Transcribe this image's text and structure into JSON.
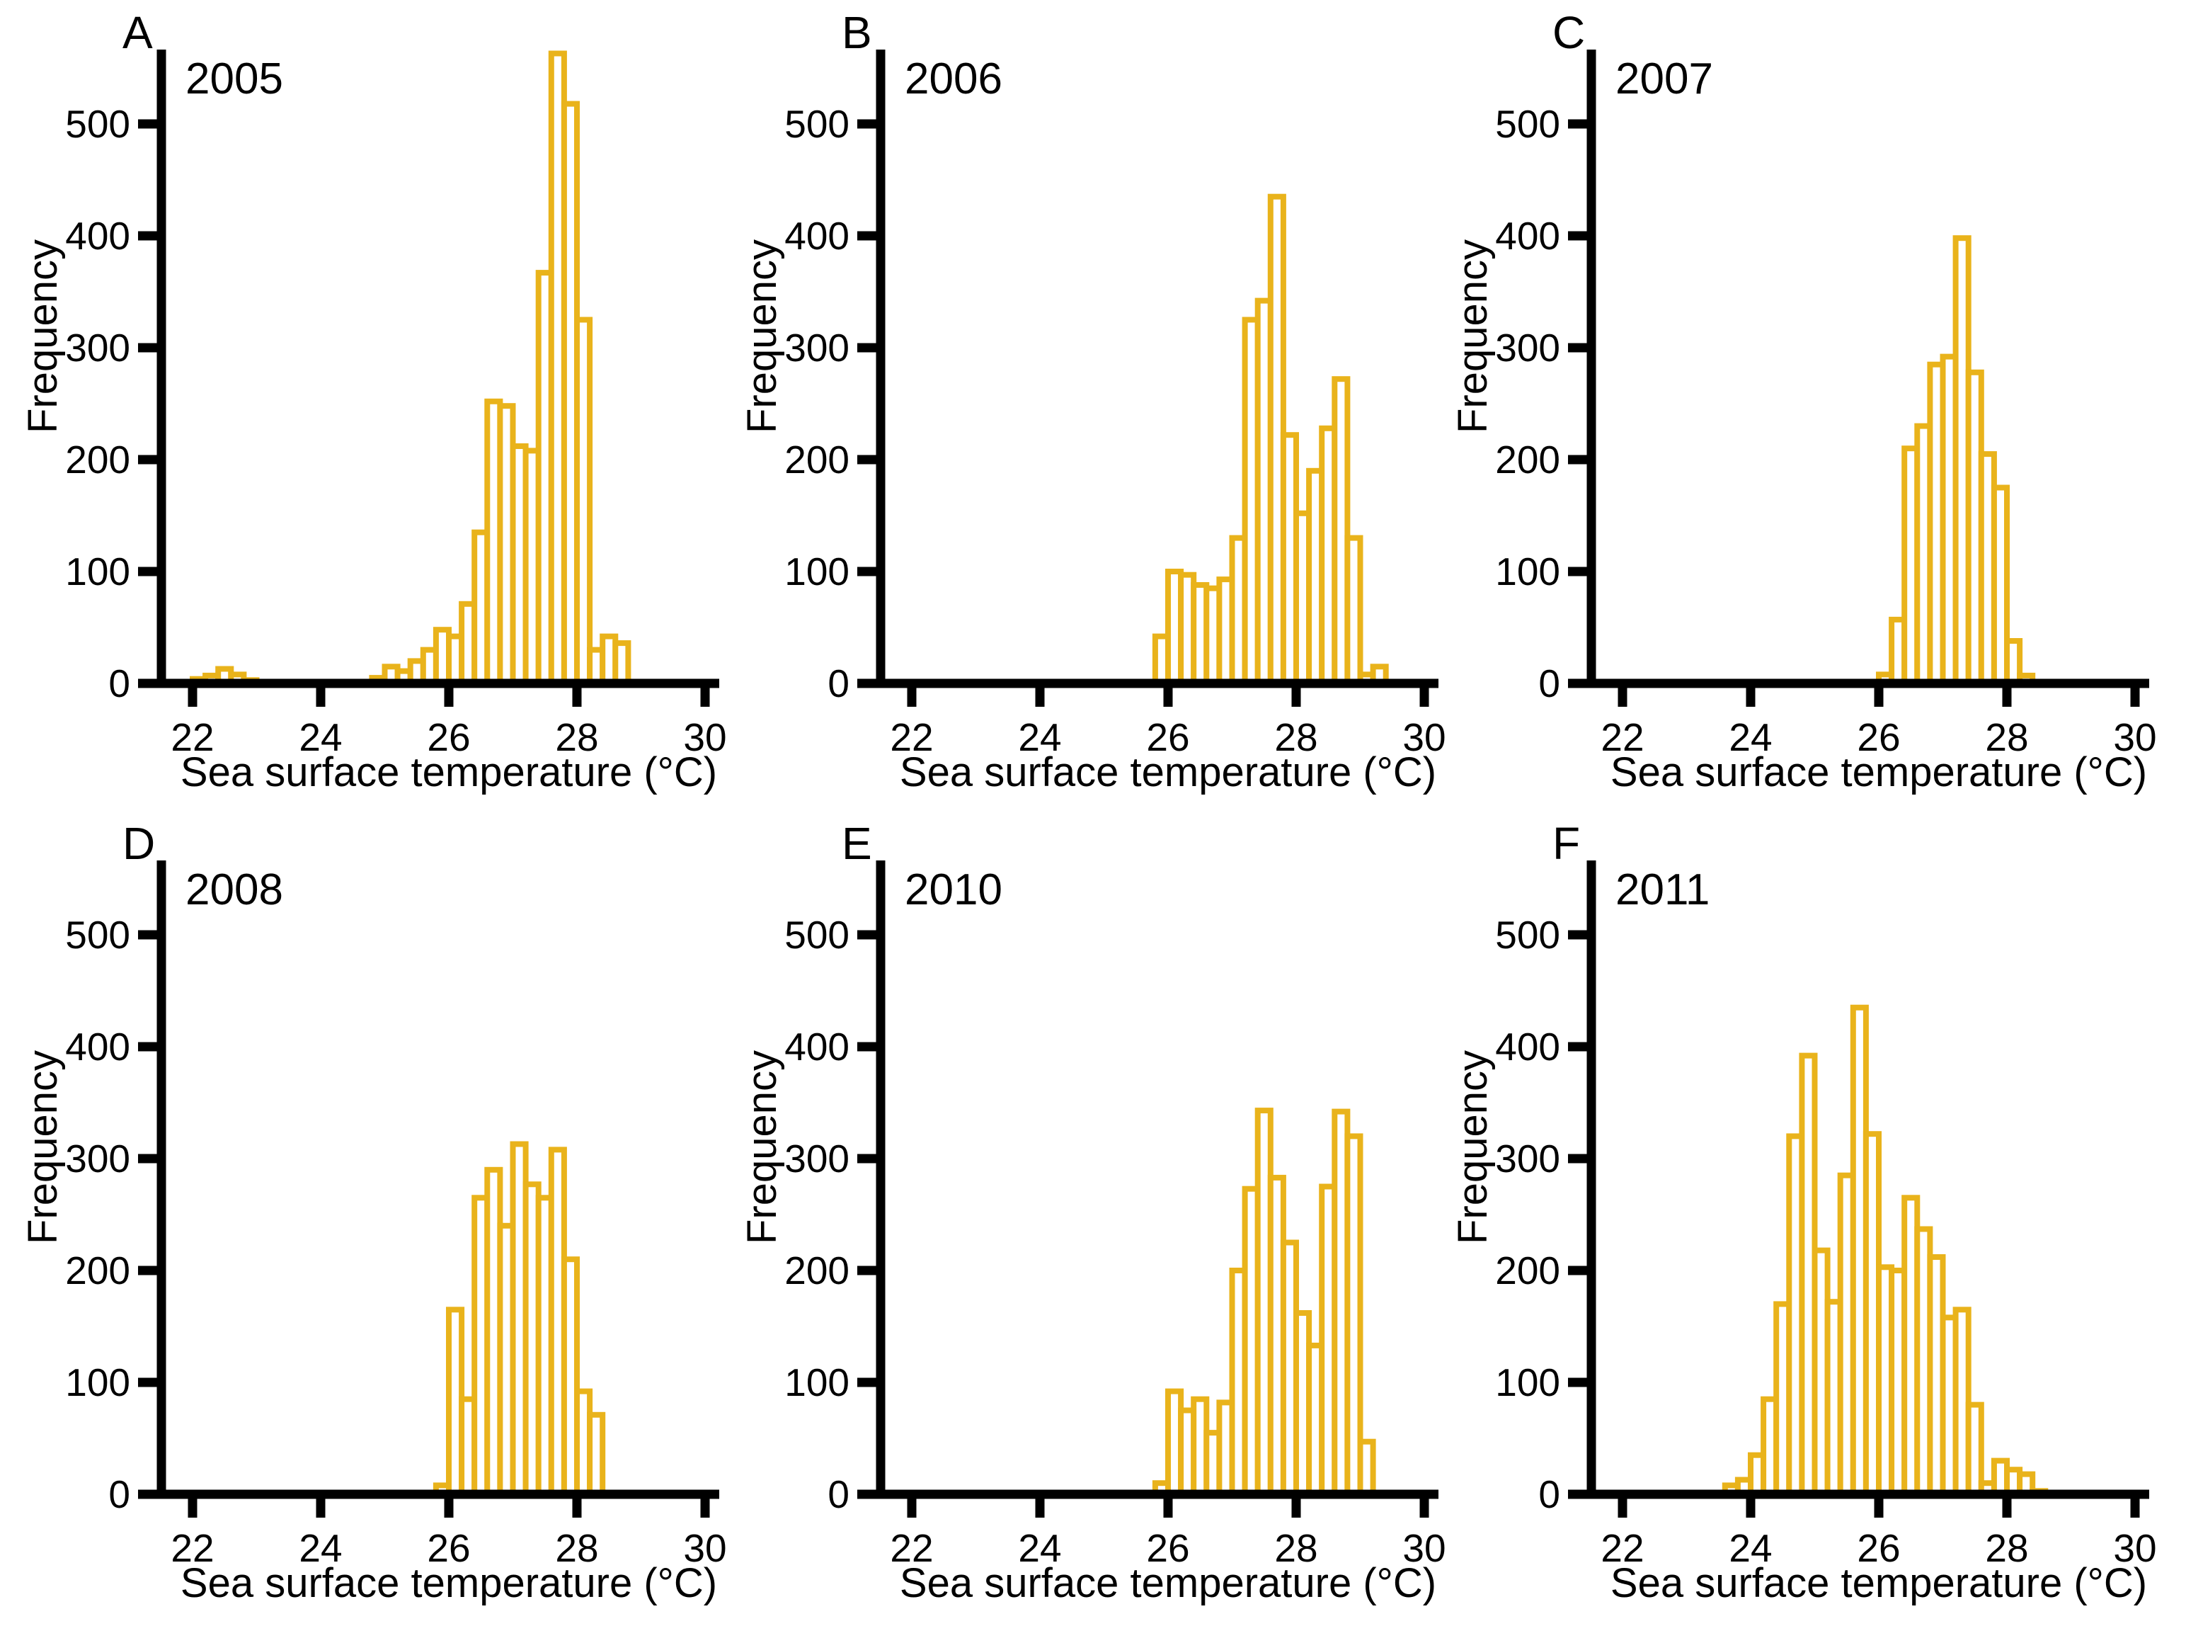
{
  "figure": {
    "ylabel": "Frequency",
    "xlabel": "Sea surface temperature (°C)",
    "x_tick_labels": [
      "22",
      "24",
      "26",
      "28",
      "30"
    ],
    "y_tick_labels": [
      "0",
      "100",
      "200",
      "300",
      "400",
      "500"
    ],
    "colors": {
      "bar_edge": "#E9B31B",
      "bar_face": "#FFFFFF",
      "axis": "#000000",
      "background": "#FFFFFF",
      "text": "#000000"
    }
  },
  "chart_data": [
    {
      "type": "bar",
      "panel_letter": "A",
      "year_label": "2005",
      "xlabel": "Sea surface temperature (°C)",
      "ylabel": "Frequency",
      "bin_start": 22.0,
      "bin_width": 0.2,
      "frequencies": [
        4,
        7,
        13,
        8,
        3,
        0,
        0,
        0,
        0,
        0,
        0,
        0,
        0,
        0,
        5,
        15,
        11,
        20,
        30,
        48,
        42,
        71,
        135,
        252,
        248,
        212,
        208,
        367,
        563,
        518,
        325,
        30,
        42,
        36
      ],
      "xticks": [
        22,
        24,
        26,
        28,
        30
      ],
      "yticks": [
        0,
        100,
        200,
        300,
        400,
        500
      ],
      "xlim": [
        21.5,
        30.6
      ],
      "ylim": [
        0,
        566
      ],
      "grid": false,
      "legend": "none"
    },
    {
      "type": "bar",
      "panel_letter": "B",
      "year_label": "2006",
      "xlabel": "Sea surface temperature (°C)",
      "ylabel": "Frequency",
      "bin_start": 25.8,
      "bin_width": 0.2,
      "frequencies": [
        42,
        100,
        97,
        88,
        85,
        93,
        130,
        325,
        342,
        435,
        222,
        152,
        190,
        228,
        272,
        130,
        8,
        15
      ],
      "xticks": [
        22,
        24,
        26,
        28,
        30
      ],
      "yticks": [
        0,
        100,
        200,
        300,
        400,
        500
      ],
      "xlim": [
        21.5,
        30.6
      ],
      "ylim": [
        0,
        566
      ],
      "grid": false,
      "legend": "none"
    },
    {
      "type": "bar",
      "panel_letter": "C",
      "year_label": "2007",
      "xlabel": "Sea surface temperature (°C)",
      "ylabel": "Frequency",
      "bin_start": 26.0,
      "bin_width": 0.2,
      "frequencies": [
        8,
        57,
        210,
        230,
        285,
        292,
        398,
        278,
        205,
        175,
        38,
        7
      ],
      "xticks": [
        22,
        24,
        26,
        28,
        30
      ],
      "yticks": [
        0,
        100,
        200,
        300,
        400,
        500
      ],
      "xlim": [
        21.5,
        30.6
      ],
      "ylim": [
        0,
        566
      ],
      "grid": false,
      "legend": "none"
    },
    {
      "type": "bar",
      "panel_letter": "D",
      "year_label": "2008",
      "xlabel": "Sea surface temperature (°C)",
      "ylabel": "Frequency",
      "bin_start": 25.8,
      "bin_width": 0.2,
      "frequencies": [
        8,
        165,
        85,
        265,
        290,
        240,
        313,
        277,
        265,
        308,
        210,
        92,
        71
      ],
      "xticks": [
        22,
        24,
        26,
        28,
        30
      ],
      "yticks": [
        0,
        100,
        200,
        300,
        400,
        500
      ],
      "xlim": [
        21.5,
        30.6
      ],
      "ylim": [
        0,
        566
      ],
      "grid": false,
      "legend": "none"
    },
    {
      "type": "bar",
      "panel_letter": "E",
      "year_label": "2010",
      "xlabel": "Sea surface temperature (°C)",
      "ylabel": "Frequency",
      "bin_start": 25.8,
      "bin_width": 0.2,
      "frequencies": [
        10,
        92,
        75,
        85,
        55,
        82,
        200,
        273,
        343,
        283,
        225,
        162,
        133,
        275,
        342,
        320,
        47
      ],
      "xticks": [
        22,
        24,
        26,
        28,
        30
      ],
      "yticks": [
        0,
        100,
        200,
        300,
        400,
        500
      ],
      "xlim": [
        21.5,
        30.6
      ],
      "ylim": [
        0,
        566
      ],
      "grid": false,
      "legend": "none"
    },
    {
      "type": "bar",
      "panel_letter": "F",
      "year_label": "2011",
      "xlabel": "Sea surface temperature (°C)",
      "ylabel": "Frequency",
      "bin_start": 23.6,
      "bin_width": 0.2,
      "frequencies": [
        8,
        13,
        35,
        85,
        170,
        320,
        392,
        218,
        172,
        285,
        435,
        322,
        203,
        200,
        265,
        237,
        212,
        158,
        165,
        80,
        10,
        30,
        22,
        18,
        3
      ],
      "xticks": [
        22,
        24,
        26,
        28,
        30
      ],
      "yticks": [
        0,
        100,
        200,
        300,
        400,
        500
      ],
      "xlim": [
        21.5,
        30.6
      ],
      "ylim": [
        0,
        566
      ],
      "grid": false,
      "legend": "none"
    }
  ]
}
